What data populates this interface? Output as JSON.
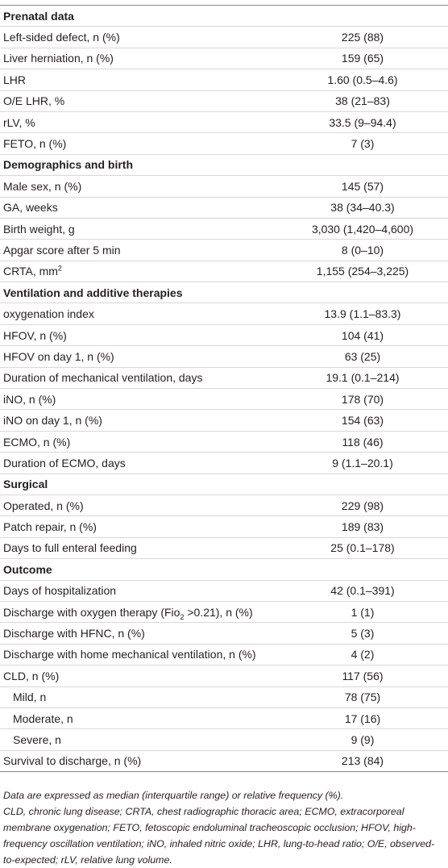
{
  "sections": [
    {
      "title": "Prenatal data",
      "rows": [
        {
          "label": "Left-sided defect, n (%)",
          "value": "225 (88)"
        },
        {
          "label": "Liver herniation, n (%)",
          "value": "159 (65)"
        },
        {
          "label": "LHR",
          "value": "1.60 (0.5–4.6)"
        },
        {
          "label": "O/E LHR, %",
          "value": "38 (21–83)"
        },
        {
          "label": "rLV, %",
          "value": "33.5 (9–94.4)"
        },
        {
          "label": "FETO, n (%)",
          "value": "7 (3)"
        }
      ]
    },
    {
      "title": "Demographics and birth",
      "rows": [
        {
          "label": "Male sex, n (%)",
          "value": "145 (57)"
        },
        {
          "label": "GA, weeks",
          "value": "38 (34–40.3)"
        },
        {
          "label": "Birth weight, g",
          "value": "3,030 (1,420–4,600)"
        },
        {
          "label": "Apgar score after 5 min",
          "value": "8 (0–10)"
        },
        {
          "label": "CRTA, mm",
          "sup": "2",
          "value": "1,155 (254–3,225)"
        }
      ]
    },
    {
      "title": "Ventilation and additive therapies",
      "rows": [
        {
          "label": "oxygenation index",
          "value": "13.9 (1.1–83.3)"
        },
        {
          "label": "HFOV, n (%)",
          "value": "104 (41)"
        },
        {
          "label": "HFOV on day 1, n (%)",
          "value": "63 (25)"
        },
        {
          "label": "Duration of mechanical ventilation, days",
          "value": "19.1 (0.1–214)"
        },
        {
          "label": "iNO, n (%)",
          "value": "178 (70)"
        },
        {
          "label": "iNO on day 1, n (%)",
          "value": "154 (63)"
        },
        {
          "label": "ECMO, n (%)",
          "value": "118 (46)"
        },
        {
          "label": "Duration of ECMO, days",
          "value": "9 (1.1–20.1)"
        }
      ]
    },
    {
      "title": "Surgical",
      "rows": [
        {
          "label": "Operated, n (%)",
          "value": "229 (98)"
        },
        {
          "label": "Patch repair, n (%)",
          "value": "189 (83)"
        },
        {
          "label": "Days to full enteral feeding",
          "value": "25 (0.1–178)"
        }
      ]
    },
    {
      "title": "Outcome",
      "rows": [
        {
          "label": "Days of hospitalization",
          "value": "42 (0.1–391)"
        },
        {
          "label": "Discharge with oxygen therapy (Fio",
          "sub": "2",
          "label_rest": " >0.21), n (%)",
          "value": "1 (1)"
        },
        {
          "label": "Discharge with HFNC, n (%)",
          "value": "5 (3)"
        },
        {
          "label": "Discharge with home mechanical ventilation, n (%)",
          "value": "4 (2)"
        },
        {
          "label": "CLD, n (%)",
          "value": "117 (56)"
        },
        {
          "label": "Mild, n",
          "value": "78 (75)",
          "indent": true
        },
        {
          "label": "Moderate, n",
          "value": "17 (16)",
          "indent": true
        },
        {
          "label": "Severe, n",
          "value": "9 (9)",
          "indent": true
        },
        {
          "label": "Survival to discharge, n (%)",
          "value": "213 (84)"
        }
      ]
    }
  ],
  "footnotes": [
    "Data are expressed as median (interquartile range) or relative frequency (%).",
    "CLD, chronic lung disease; CRTA, chest radiographic thoracic area; ECMO, extracorporeal membrane oxygenation; FETO, fetoscopic endoluminal tracheoscopic occlusion; HFOV, high-frequency oscillation ventilation; iNO, inhaled nitric oxide; LHR, lung-to-head ratio; O/E, observed-to-expected; rLV, relative lung volume."
  ]
}
